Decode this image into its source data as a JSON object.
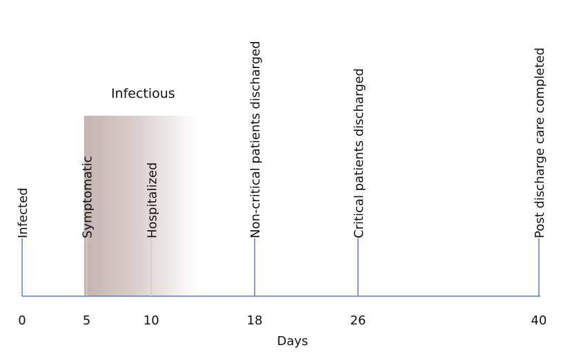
{
  "timeline": {
    "axis_label": "Days",
    "region_label": "Infectious",
    "colors": {
      "axis": "#5b7bc4",
      "inner_line": "#cfcfcf",
      "shade_start": "#c5b4b3",
      "shade_end": "#ffffff"
    },
    "region": {
      "start_day": 4.8,
      "end_day": 13.5
    },
    "events": [
      {
        "day": 0,
        "tick": "0",
        "label": "Infected"
      },
      {
        "day": 5,
        "tick": "5",
        "label": "Symptomatic"
      },
      {
        "day": 10,
        "tick": "10",
        "label": "Hospitalized"
      },
      {
        "day": 18,
        "tick": "18",
        "label": "Non-critical patients discharged"
      },
      {
        "day": 26,
        "tick": "26",
        "label": "Critical patients discharged"
      },
      {
        "day": 40,
        "tick": "40",
        "label": "Post discharge care completed"
      }
    ]
  }
}
